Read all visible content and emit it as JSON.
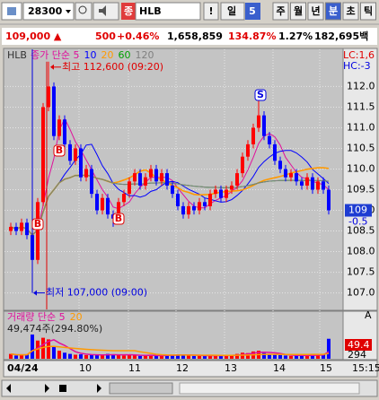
{
  "toolbar": {
    "code": "28300",
    "badge": "종",
    "name": "HLB",
    "alert": "!",
    "period": "일",
    "count": "5",
    "buttons": [
      "주",
      "월",
      "년",
      "분",
      "초",
      "틱"
    ]
  },
  "quote": {
    "price": "109,000 ▲",
    "change": "500",
    "rate": "+0.46%",
    "volume": "1,658,859",
    "volume_ratio": "134.87%",
    "turnover": "1.27%",
    "amount": "182,695백"
  },
  "price_chart": {
    "type": "candlestick",
    "name": "HLB",
    "legend": [
      "종가 단순 5",
      "10",
      "20",
      "60",
      "120"
    ],
    "legend_colors": [
      "#e0109c",
      "#0000ff",
      "#ff9900",
      "#00a000",
      "#808080"
    ],
    "lc": "LC:1,6",
    "hc": "HC:-3",
    "high_note": "최고 112,600 (09:20)",
    "low_note": "최저 107,000 (09:00)",
    "signals": [
      "B",
      "B",
      "B",
      "S"
    ],
    "up_color": "#ff0000",
    "down_color": "#0000ff",
    "ylim": [
      106.6,
      112.9
    ],
    "yticks": [
      {
        "value": 112,
        "label": "112.0"
      },
      111.5,
      {
        "value": 111,
        "label": "111.0"
      },
      110.5,
      {
        "value": 110,
        "label": "110.0"
      },
      109.5,
      {
        "value": 109,
        "label": "109.0"
      },
      108.5,
      {
        "value": 108,
        "label": "108.0"
      },
      107.5,
      {
        "value": 107,
        "label": "107.0"
      }
    ],
    "open": [
      108.5,
      108.6,
      108.5,
      108.7,
      108.4,
      107.8,
      109.2,
      111.5,
      112.0,
      110.8,
      111.2,
      110.6,
      110.2,
      110.5,
      109.8,
      110.0,
      109.4,
      109.0,
      109.3,
      108.9,
      108.8,
      109.2,
      109.4,
      109.7,
      109.9,
      109.6,
      109.8,
      110.0,
      109.7,
      109.9,
      109.6,
      109.4,
      109.1,
      108.9,
      109.1,
      109.0,
      109.2,
      109.1,
      109.4,
      109.5,
      109.3,
      109.5,
      109.6,
      109.9,
      110.3,
      110.6,
      111.0,
      111.3,
      110.8,
      110.6,
      110.2,
      110.0,
      109.8,
      109.9,
      109.7,
      109.6,
      109.8,
      109.5,
      109.7,
      109.5
    ],
    "high": [
      108.7,
      108.7,
      108.8,
      108.8,
      108.5,
      109.3,
      111.6,
      112.6,
      112.1,
      111.3,
      111.3,
      110.7,
      110.6,
      110.6,
      110.1,
      110.1,
      109.5,
      109.4,
      109.4,
      109.0,
      109.3,
      109.5,
      109.8,
      110.0,
      110.0,
      109.9,
      110.1,
      110.1,
      110.0,
      110.0,
      109.7,
      109.5,
      109.2,
      109.2,
      109.2,
      109.3,
      109.3,
      109.5,
      109.6,
      109.6,
      109.6,
      109.7,
      110.0,
      110.4,
      110.7,
      111.1,
      111.7,
      111.4,
      110.9,
      110.7,
      110.3,
      110.1,
      110.0,
      110.0,
      109.8,
      109.9,
      109.9,
      109.8,
      109.8,
      109.6
    ],
    "low": [
      108.4,
      108.4,
      108.4,
      108.3,
      107.0,
      107.7,
      109.1,
      111.4,
      110.7,
      110.7,
      110.5,
      110.1,
      110.1,
      109.7,
      109.7,
      109.3,
      108.9,
      108.9,
      108.8,
      108.6,
      108.7,
      109.1,
      109.3,
      109.6,
      109.5,
      109.5,
      109.7,
      109.6,
      109.6,
      109.5,
      109.3,
      109.0,
      108.8,
      108.8,
      108.9,
      108.9,
      109.0,
      109.0,
      109.3,
      109.2,
      109.2,
      109.4,
      109.5,
      109.8,
      110.2,
      110.5,
      110.9,
      110.7,
      110.5,
      110.1,
      109.9,
      109.7,
      109.7,
      109.6,
      109.5,
      109.5,
      109.4,
      109.4,
      109.4,
      108.9
    ],
    "close": [
      108.6,
      108.5,
      108.7,
      108.4,
      107.8,
      109.2,
      111.5,
      112.0,
      110.8,
      111.2,
      110.6,
      110.2,
      110.5,
      109.8,
      110.0,
      109.4,
      109.0,
      109.3,
      108.9,
      108.8,
      109.2,
      109.4,
      109.7,
      109.9,
      109.6,
      109.8,
      110.0,
      109.7,
      109.9,
      109.6,
      109.4,
      109.1,
      108.9,
      109.1,
      109.0,
      109.2,
      109.1,
      109.4,
      109.5,
      109.3,
      109.5,
      109.6,
      109.9,
      110.3,
      110.6,
      111.0,
      111.3,
      110.8,
      110.6,
      110.2,
      110.0,
      109.8,
      109.9,
      109.7,
      109.6,
      109.8,
      109.5,
      109.7,
      109.5,
      109.0
    ],
    "last_price": 109,
    "last_change": "-0.5",
    "x_labels": [
      "04/24",
      "10",
      "11",
      "12",
      "13",
      "14",
      "15",
      "15:15"
    ]
  },
  "volume_chart": {
    "type": "bar",
    "legend": [
      "거래량 단순 5",
      "20"
    ],
    "legend_colors": [
      "#e0109c",
      "#ff9900"
    ],
    "summary": "49,474주(294.80%)",
    "axis_labels": [
      "A",
      "49.4",
      "294"
    ],
    "ylim": [
      0,
      100000
    ],
    "values": [
      12000,
      8000,
      9000,
      10000,
      60000,
      45000,
      52000,
      48000,
      30000,
      20000,
      15000,
      12000,
      10000,
      11000,
      9000,
      10000,
      9000,
      8000,
      12000,
      11000,
      9000,
      8000,
      10000,
      9000,
      7000,
      8000,
      9000,
      7000,
      8000,
      9000,
      10000,
      11000,
      9000,
      8000,
      7000,
      8000,
      7000,
      9000,
      8000,
      7000,
      8000,
      9000,
      12000,
      15000,
      14000,
      18000,
      20000,
      14000,
      12000,
      10000,
      9000,
      8000,
      7000,
      8000,
      9000,
      8000,
      10000,
      9000,
      11000,
      49474
    ]
  }
}
